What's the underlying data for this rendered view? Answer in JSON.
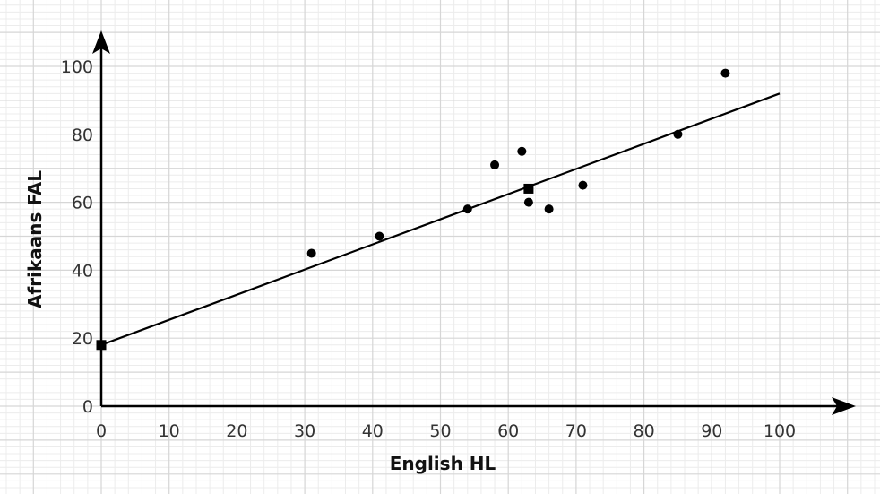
{
  "chart_data": {
    "type": "scatter",
    "title": "",
    "xlabel": "English HL",
    "ylabel": "Afrikaans FAL",
    "xlim": [
      0,
      100
    ],
    "ylim": [
      0,
      100
    ],
    "x_ticks": [
      0,
      10,
      20,
      30,
      40,
      50,
      60,
      70,
      80,
      90,
      100
    ],
    "y_ticks": [
      0,
      20,
      40,
      60,
      80,
      100
    ],
    "grid": true,
    "points": [
      {
        "x": 31,
        "y": 45
      },
      {
        "x": 41,
        "y": 50
      },
      {
        "x": 54,
        "y": 58
      },
      {
        "x": 58,
        "y": 71
      },
      {
        "x": 62,
        "y": 75
      },
      {
        "x": 63,
        "y": 60
      },
      {
        "x": 66,
        "y": 58
      },
      {
        "x": 71,
        "y": 65
      },
      {
        "x": 85,
        "y": 80
      },
      {
        "x": 92,
        "y": 98
      }
    ],
    "regression_line": {
      "x": [
        0,
        100
      ],
      "y": [
        18,
        92
      ]
    },
    "square_markers": [
      {
        "x": 0,
        "y": 18
      },
      {
        "x": 63,
        "y": 64
      }
    ],
    "colors": {
      "minor_grid": "#ececec",
      "major_grid": "#d6d6d6",
      "axis": "#000000",
      "marker": "#000000"
    }
  }
}
